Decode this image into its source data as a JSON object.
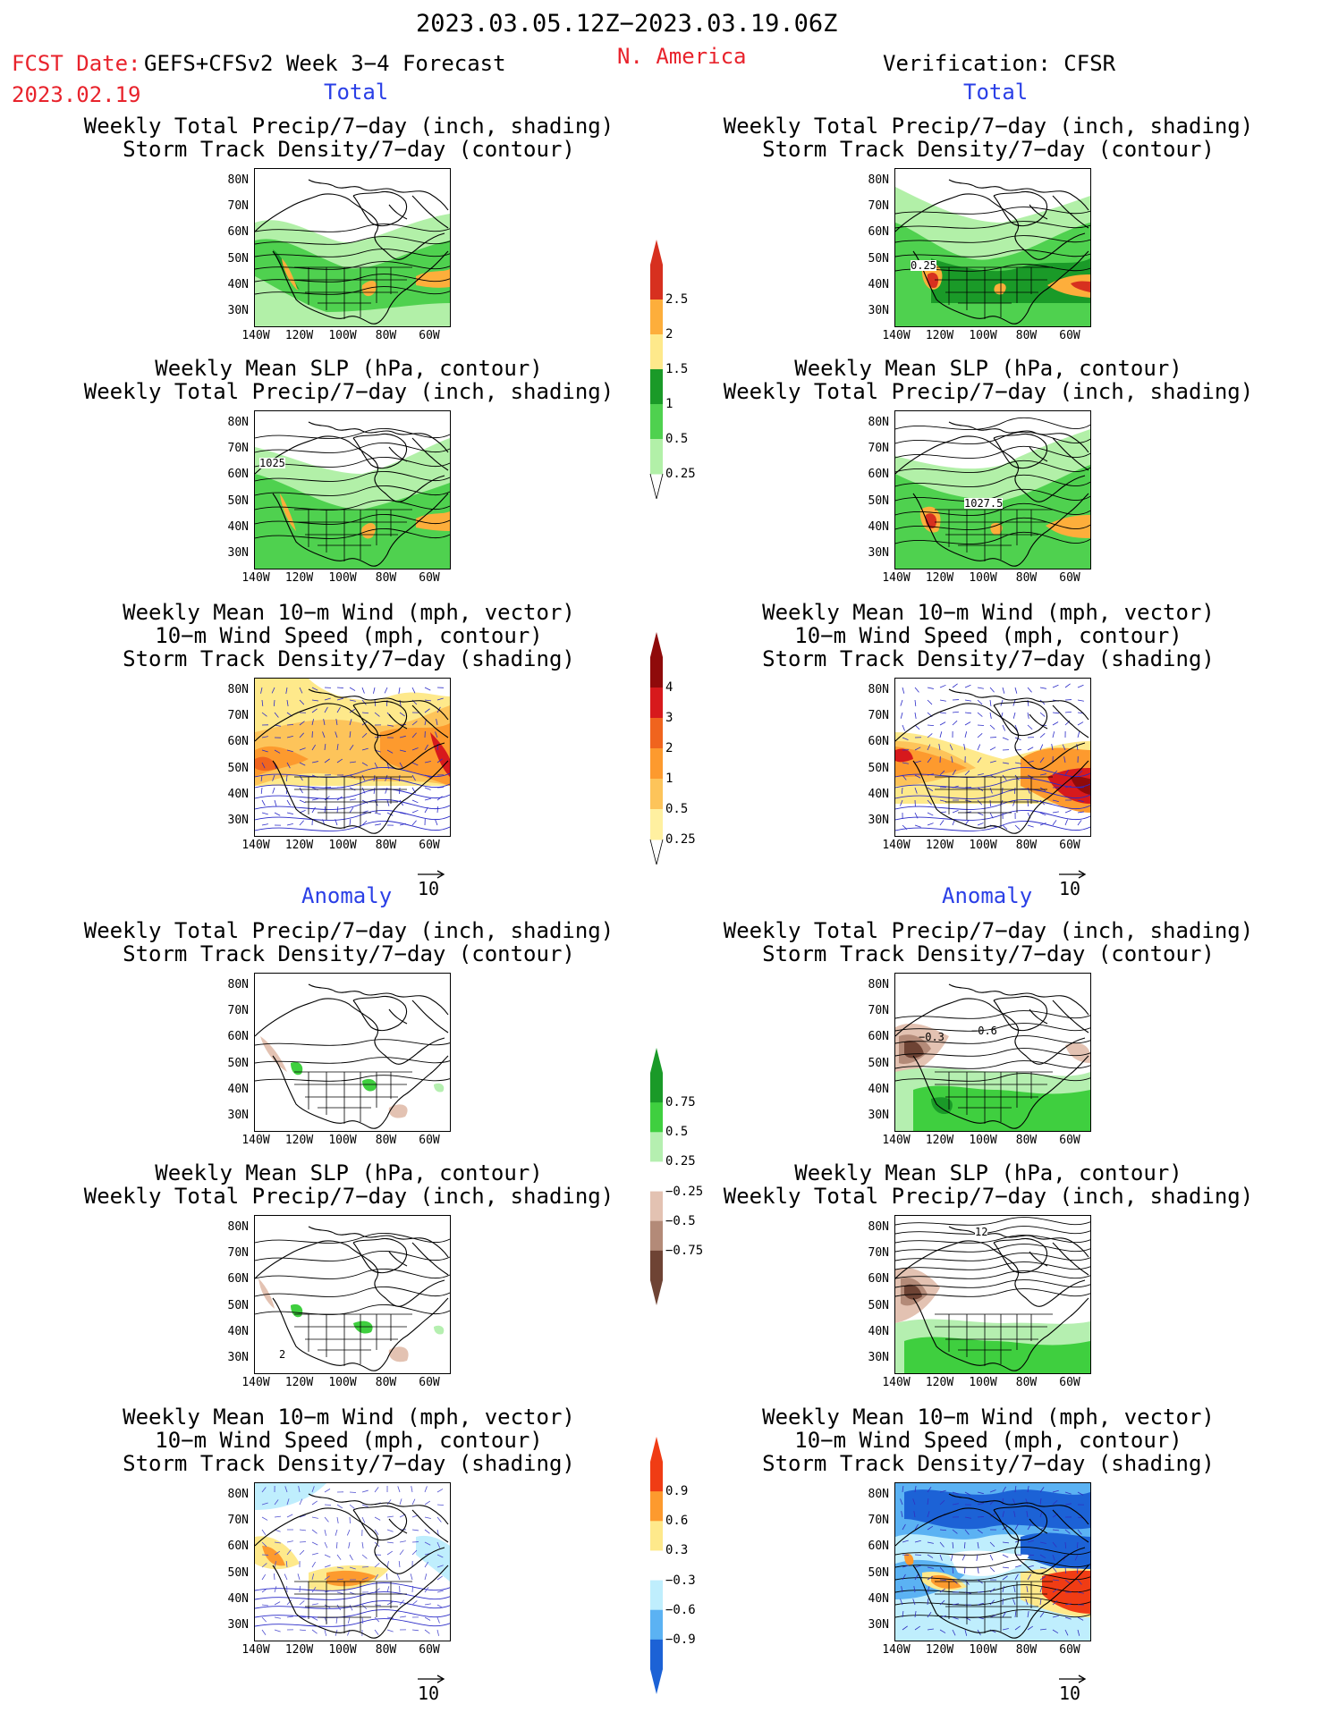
{
  "header": {
    "period": "2023.03.05.12Z−2023.03.19.06Z",
    "fcst_label": "FCST Date:",
    "model": "GEFS+CFSv2 Week 3−4 Forecast",
    "fcst_date": "2023.02.19",
    "region": "N. America",
    "verification": "Verification: CFSR"
  },
  "sections": {
    "total": "Total",
    "anomaly": "Anomaly"
  },
  "panel_titles": {
    "precip_storm": "Weekly Total Precip/7−day (inch, shading)\nStorm Track Density/7−day (contour)",
    "slp_precip": "Weekly Mean SLP (hPa, contour)\nWeekly Total Precip/7−day (inch, shading)",
    "wind_storm": "Weekly Mean 10−m Wind (mph, vector)\n10−m Wind Speed (mph, contour)\nStorm Track Density/7−day (shading)"
  },
  "axes": {
    "lat_labels": [
      "80N",
      "70N",
      "60N",
      "50N",
      "40N",
      "30N"
    ],
    "lon_labels": [
      "140W",
      "120W",
      "100W",
      "80W",
      "60W"
    ]
  },
  "vector_ref": "10",
  "contour_labels": {
    "fcst_slp_total": "1025",
    "ver_precip_total": "0.25",
    "ver_slp_total": "1027.5",
    "ver_precip_anom_a": "−0.3",
    "ver_precip_anom_b": "−0.6",
    "ver_slp_anom": "12",
    "fcst_slp_anom": "2"
  },
  "colorbars": {
    "precip_total": {
      "labels": [
        "2.5",
        "2",
        "1.5",
        "1",
        "0.5",
        "0.25"
      ],
      "colors": [
        "#d7301f",
        "#fdae3b",
        "#fee98b",
        "#1a9a28",
        "#4fd14f",
        "#b2f0a8"
      ]
    },
    "storm_total": {
      "labels": [
        "4",
        "3",
        "2",
        "1",
        "0.5",
        "0.25"
      ],
      "colors": [
        "#8f0a0a",
        "#d7191c",
        "#f0641e",
        "#fd9a2e",
        "#fdc45a",
        "#fff0a0"
      ]
    },
    "precip_anom": {
      "labels": [
        "0.75",
        "0.5",
        "0.25",
        "−0.25",
        "−0.5",
        "−0.75"
      ],
      "colors": [
        "#1a9a28",
        "#3fcf3f",
        "#b5efb0",
        "#ffffff",
        "#e3c2b2",
        "#b38a78",
        "#6e4334"
      ]
    },
    "storm_anom": {
      "labels": [
        "0.9",
        "0.6",
        "0.3",
        "−0.3",
        "−0.6",
        "−0.9"
      ],
      "colors": [
        "#f03c14",
        "#fd9a2e",
        "#fee98b",
        "#ffffff",
        "#bfeefd",
        "#5bb2f3",
        "#1c62d6"
      ]
    }
  }
}
